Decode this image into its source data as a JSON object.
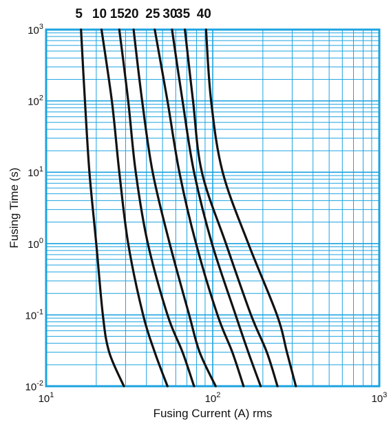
{
  "chart_data": {
    "type": "line",
    "title": "",
    "xlabel": "Fusing Current (A) rms",
    "ylabel": "Fusing Time (s)",
    "x_scale": "log",
    "y_scale": "log",
    "xlim": [
      10,
      1000
    ],
    "ylim": [
      0.01,
      1000
    ],
    "grid": true,
    "legend": "series labels above each curve at top",
    "x_ticks": [
      {
        "base": "10",
        "exp": "1",
        "value": 10
      },
      {
        "base": "10",
        "exp": "2",
        "value": 100
      },
      {
        "base": "10",
        "exp": "3",
        "value": 1000
      }
    ],
    "y_ticks": [
      {
        "base": "10",
        "exp": "-2",
        "value": 0.01
      },
      {
        "base": "10",
        "exp": "-1",
        "value": 0.1
      },
      {
        "base": "10",
        "exp": "0",
        "value": 1
      },
      {
        "base": "10",
        "exp": "1",
        "value": 10
      },
      {
        "base": "10",
        "exp": "2",
        "value": 100
      },
      {
        "base": "10",
        "exp": "3",
        "value": 1000
      }
    ],
    "series": [
      {
        "name": "5",
        "points": [
          [
            16.2,
            1000
          ],
          [
            17.1,
            100
          ],
          [
            18.2,
            10
          ],
          [
            20.0,
            1
          ],
          [
            21.9,
            0.1
          ],
          [
            23.9,
            0.03
          ],
          [
            29.3,
            0.01
          ]
        ]
      },
      {
        "name": "10",
        "points": [
          [
            21.5,
            1000
          ],
          [
            24.8,
            100
          ],
          [
            27.5,
            10
          ],
          [
            31.1,
            1
          ],
          [
            38.2,
            0.1
          ],
          [
            44.9,
            0.03
          ],
          [
            53.5,
            0.01
          ]
        ]
      },
      {
        "name": "15",
        "points": [
          [
            27.5,
            1000
          ],
          [
            31.1,
            100
          ],
          [
            34.5,
            10
          ],
          [
            40.8,
            1
          ],
          [
            53.5,
            0.1
          ],
          [
            65.9,
            0.03
          ],
          [
            77.3,
            0.01
          ]
        ]
      },
      {
        "name": "20",
        "points": [
          [
            33.5,
            1000
          ],
          [
            37.7,
            100
          ],
          [
            43.6,
            10
          ],
          [
            55.2,
            1
          ],
          [
            72.2,
            0.1
          ],
          [
            83.5,
            0.03
          ],
          [
            104.2,
            0.01
          ]
        ]
      },
      {
        "name": "25",
        "points": [
          [
            44.9,
            1000
          ],
          [
            53.5,
            100
          ],
          [
            63.1,
            10
          ],
          [
            79.4,
            1
          ],
          [
            106.8,
            0.1
          ],
          [
            131.1,
            0.03
          ],
          [
            153.2,
            0.01
          ]
        ]
      },
      {
        "name": "30",
        "points": [
          [
            57.0,
            1000
          ],
          [
            65.9,
            100
          ],
          [
            77.3,
            10
          ],
          [
            99.0,
            1
          ],
          [
            137.2,
            0.1
          ],
          [
            163.5,
            0.03
          ],
          [
            194.1,
            0.01
          ]
        ]
      },
      {
        "name": "35",
        "points": [
          [
            68.1,
            1000
          ],
          [
            76.2,
            100
          ],
          [
            86.1,
            10
          ],
          [
            120.0,
            1
          ],
          [
            169.8,
            0.1
          ],
          [
            211.3,
            0.03
          ],
          [
            244.8,
            0.01
          ]
        ]
      },
      {
        "name": "40",
        "points": [
          [
            91.2,
            1000
          ],
          [
            97.8,
            100
          ],
          [
            114.8,
            10
          ],
          [
            163.5,
            1
          ],
          [
            243.0,
            0.1
          ],
          [
            279.0,
            0.03
          ],
          [
            315.5,
            0.01
          ]
        ]
      }
    ]
  }
}
